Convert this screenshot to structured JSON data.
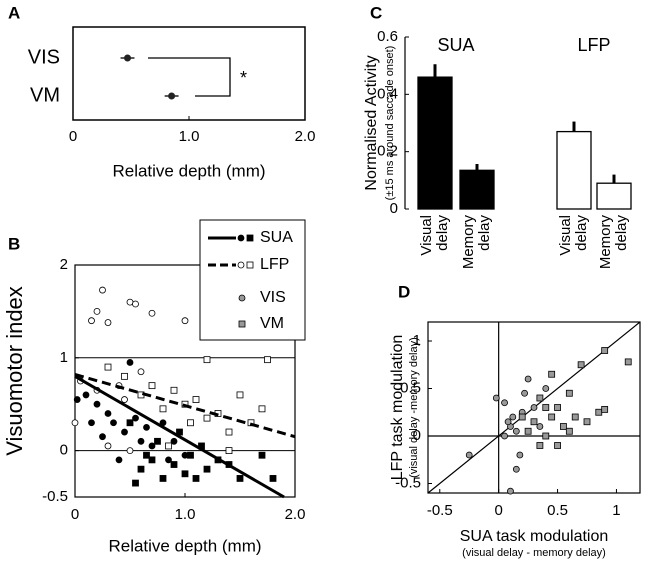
{
  "chart_data": [
    {
      "type": "dot-error",
      "panel": "A",
      "categories": [
        "VIS",
        "VM"
      ],
      "values": [
        0.47,
        0.85
      ],
      "errors": [
        0.06,
        0.06
      ],
      "color": "#222",
      "annotation": "*",
      "xlabel": "Relative depth (mm)",
      "xlim": [
        0,
        2
      ],
      "xticks": [
        0,
        {
          "value": 1,
          "label": "1.0"
        },
        {
          "value": 2,
          "label": "2.0"
        }
      ]
    },
    {
      "type": "scatter",
      "panel": "B",
      "xlabel": "Relative depth (mm)",
      "ylabel": "Visuomotor index",
      "xlim": [
        0,
        2
      ],
      "ylim": [
        -0.5,
        2
      ],
      "xticks": [
        0,
        {
          "value": 1,
          "label": "1.0"
        },
        {
          "value": 2,
          "label": "2.0"
        }
      ],
      "yticks": [
        -0.5,
        0,
        1,
        2
      ],
      "reference_lines": [
        0,
        1
      ],
      "markers": [
        {
          "name": "VIS",
          "shape": "circle",
          "color": "#999"
        },
        {
          "name": "VM",
          "shape": "square",
          "color": "#999"
        }
      ],
      "groups": [
        {
          "name": "SUA",
          "line": "solid",
          "fill": "#000",
          "fit": {
            "x": [
              0,
              1.9
            ],
            "y": [
              0.8,
              -0.5
            ]
          },
          "series": [
            {
              "x": [
                0.02,
                0.1,
                0.2,
                0.3,
                0.35,
                0.45,
                0.5,
                0.55,
                0.6,
                0.65,
                0.7,
                0.8,
                0.85,
                0.9,
                1.0,
                0.4,
                0.25,
                0.15
              ],
              "y": [
                0.55,
                0.6,
                0.5,
                0.4,
                0.3,
                0.2,
                0.95,
                0.35,
                0.1,
                0.25,
                0.05,
                0.3,
                -0.1,
                0.1,
                -0.05,
                -0.1,
                0.15,
                0.3
              ]
            },
            {
              "x": [
                0.5,
                0.6,
                0.7,
                0.75,
                0.8,
                0.9,
                0.95,
                1.0,
                1.05,
                1.1,
                1.15,
                1.2,
                1.3,
                1.4,
                1.5,
                1.7,
                1.8,
                0.55,
                0.65
              ],
              "y": [
                0.3,
                -0.2,
                -0.1,
                0.1,
                -0.3,
                -0.15,
                0.2,
                -0.25,
                -0.05,
                -0.3,
                0.05,
                -0.2,
                -0.1,
                -0.15,
                -0.3,
                -0.05,
                -0.3,
                -0.35,
                -0.05
              ]
            }
          ]
        },
        {
          "name": "LFP",
          "line": "dashed",
          "fill": "#fff",
          "fit": {
            "x": [
              0,
              2
            ],
            "y": [
              0.82,
              0.15
            ]
          },
          "series": [
            {
              "x": [
                0.0,
                0.15,
                0.2,
                0.25,
                0.5,
                0.55,
                0.7,
                0.3,
                1.0,
                0.05,
                0.2,
                0.3,
                0.4,
                0.45,
                0.6,
                0.5
              ],
              "y": [
                0.3,
                1.4,
                1.5,
                1.73,
                1.6,
                1.58,
                1.48,
                1.38,
                1.4,
                0.75,
                0.65,
                0.05,
                0.7,
                0.55,
                0.85,
                0.0
              ]
            },
            {
              "x": [
                0.3,
                0.45,
                0.6,
                0.7,
                0.8,
                0.9,
                1.0,
                1.05,
                1.1,
                1.2,
                1.3,
                1.4,
                1.5,
                1.6,
                1.7,
                1.75,
                1.2,
                0.85,
                1.4
              ],
              "y": [
                0.9,
                0.8,
                0.6,
                0.7,
                0.45,
                0.65,
                0.5,
                0.3,
                0.55,
                0.35,
                0.4,
                0.2,
                0.6,
                0.3,
                0.45,
                0.98,
                0.98,
                0.05,
                0.0
              ]
            }
          ]
        }
      ]
    },
    {
      "type": "bar",
      "panel": "C",
      "ylabel": "Normalised Activity",
      "subtitle": "(±15 ms around saccade onset)",
      "ylim": [
        0,
        0.6
      ],
      "yticks": [
        0,
        0.2,
        0.4,
        0.6
      ],
      "groups": [
        {
          "name": "SUA",
          "color": "#000",
          "categories": [
            [
              "Visual",
              "delay"
            ],
            [
              "Memory",
              "delay"
            ]
          ],
          "values": [
            0.46,
            0.135
          ],
          "errors": [
            0.045,
            0.022
          ]
        },
        {
          "name": "LFP",
          "color": "#fff",
          "categories": [
            [
              "Visual",
              "delay"
            ],
            [
              "Memory",
              "delay"
            ]
          ],
          "values": [
            0.27,
            0.09
          ],
          "errors": [
            0.035,
            0.03
          ]
        }
      ]
    },
    {
      "type": "scatter",
      "panel": "D",
      "xlabel": "SUA task modulation",
      "xsublabel": "(visual delay - memory delay)",
      "ylabel": "LFP task modulation",
      "ysublabel": "(visual delay -memory delay)",
      "xlim": [
        -0.6,
        1.2
      ],
      "ylim": [
        -0.6,
        1.2
      ],
      "xticks": [
        -0.5,
        0,
        0.5,
        1
      ],
      "yticks": [
        -0.5,
        0,
        0.5,
        1
      ],
      "zero_lines": true,
      "identity_line": true,
      "series": [
        {
          "shape": "circle",
          "color": "#999",
          "x": [
            -0.02,
            0.05,
            0.1,
            0.12,
            0.15,
            0.18,
            0.2,
            0.22,
            0.25,
            0.3,
            0.35,
            0.15,
            0.1,
            -0.25,
            0.05,
            0.4,
            0.08
          ],
          "y": [
            0.4,
            0.35,
            0.1,
            0.2,
            0.05,
            -0.2,
            0.25,
            0.45,
            0.6,
            0.3,
            0.1,
            -0.35,
            -0.58,
            -0.2,
            0.0,
            0.5,
            0.15
          ]
        },
        {
          "shape": "square",
          "color": "#999",
          "x": [
            0.2,
            0.25,
            0.3,
            0.35,
            0.4,
            0.45,
            0.5,
            0.55,
            0.6,
            0.65,
            0.7,
            0.75,
            0.85,
            0.9,
            1.1,
            0.9,
            0.6,
            0.5,
            0.35,
            0.45,
            0.4
          ],
          "y": [
            0.2,
            0.05,
            0.15,
            0.4,
            0.0,
            0.2,
            0.3,
            0.1,
            0.45,
            0.2,
            0.75,
            0.15,
            0.25,
            0.9,
            0.78,
            0.28,
            0.05,
            -0.1,
            -0.1,
            0.65,
            0.3
          ]
        }
      ]
    }
  ]
}
